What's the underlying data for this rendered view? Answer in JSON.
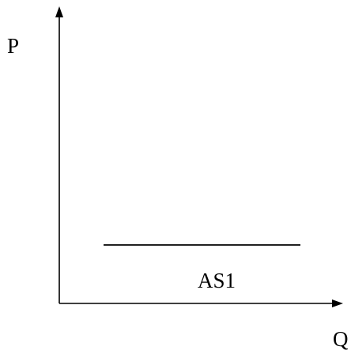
{
  "diagram": {
    "y_axis_label": "P",
    "x_axis_label": "Q",
    "curve_label": "AS1",
    "colors": {
      "background": "#ffffff",
      "ink": "#000000"
    }
  }
}
